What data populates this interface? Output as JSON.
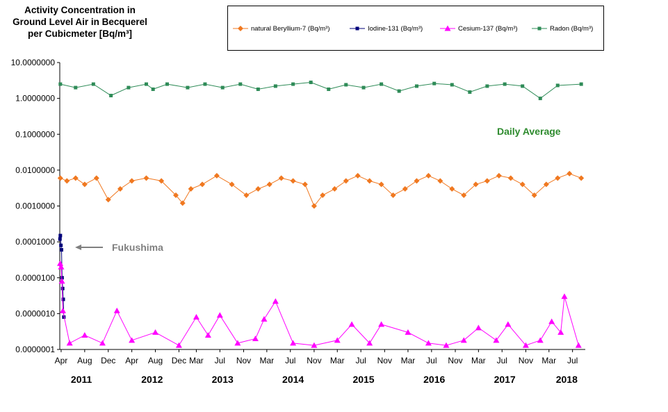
{
  "title_lines": [
    "Activity  Concentration in",
    "Ground Level Air in Becquerel",
    "per Cubicmeter  [Bq/m³]"
  ],
  "chart_data": {
    "type": "line",
    "y_scale": "log",
    "ylim": [
      1e-07,
      10
    ],
    "xlim": [
      "2011-03-25",
      "2018-09-05"
    ],
    "y_ticks": [
      "10.0000000",
      "1.0000000",
      "0.1000000",
      "0.0100000",
      "0.0010000",
      "0.0001000",
      "0.0000100",
      "0.0000010",
      "0.0000001"
    ],
    "x_ticks": [
      {
        "date": "2011-04-01",
        "label": "Apr"
      },
      {
        "date": "2011-08-01",
        "label": "Aug"
      },
      {
        "date": "2011-12-01",
        "label": "Dec"
      },
      {
        "date": "2012-04-01",
        "label": "Apr"
      },
      {
        "date": "2012-08-01",
        "label": "Aug"
      },
      {
        "date": "2012-12-01",
        "label": "Dec"
      },
      {
        "date": "2013-03-01",
        "label": "Mar"
      },
      {
        "date": "2013-07-01",
        "label": "Jul"
      },
      {
        "date": "2013-11-01",
        "label": "Nov"
      },
      {
        "date": "2014-03-01",
        "label": "Mar"
      },
      {
        "date": "2014-07-01",
        "label": "Jul"
      },
      {
        "date": "2014-11-01",
        "label": "Nov"
      },
      {
        "date": "2015-03-01",
        "label": "Mar"
      },
      {
        "date": "2015-07-01",
        "label": "Jul"
      },
      {
        "date": "2015-11-01",
        "label": "Nov"
      },
      {
        "date": "2016-03-01",
        "label": "Mar"
      },
      {
        "date": "2016-07-01",
        "label": "Jul"
      },
      {
        "date": "2016-11-01",
        "label": "Nov"
      },
      {
        "date": "2017-03-01",
        "label": "Mar"
      },
      {
        "date": "2017-07-01",
        "label": "Jul"
      },
      {
        "date": "2017-11-01",
        "label": "Nov"
      },
      {
        "date": "2018-03-01",
        "label": "Mar"
      },
      {
        "date": "2018-07-01",
        "label": "Jul"
      }
    ],
    "year_labels": [
      {
        "date": "2011-07-15",
        "label": "2011"
      },
      {
        "date": "2012-07-15",
        "label": "2012"
      },
      {
        "date": "2013-07-15",
        "label": "2013"
      },
      {
        "date": "2014-07-15",
        "label": "2014"
      },
      {
        "date": "2015-07-15",
        "label": "2015"
      },
      {
        "date": "2016-07-15",
        "label": "2016"
      },
      {
        "date": "2017-07-15",
        "label": "2017"
      },
      {
        "date": "2018-06-01",
        "label": "2018"
      }
    ],
    "legend_position": "top-right",
    "series": [
      {
        "name": "natural Beryllium-7 (Bq/m³)",
        "color": "#f07820",
        "marker": "diamond",
        "points": [
          [
            "2011-03-28",
            0.006
          ],
          [
            "2011-05-01",
            0.005
          ],
          [
            "2011-06-15",
            0.006
          ],
          [
            "2011-08-01",
            0.004
          ],
          [
            "2011-10-01",
            0.006
          ],
          [
            "2011-12-01",
            0.0015
          ],
          [
            "2012-02-01",
            0.003
          ],
          [
            "2012-04-01",
            0.005
          ],
          [
            "2012-06-15",
            0.006
          ],
          [
            "2012-09-01",
            0.005
          ],
          [
            "2012-11-15",
            0.002
          ],
          [
            "2012-12-20",
            0.0012
          ],
          [
            "2013-02-01",
            0.003
          ],
          [
            "2013-04-01",
            0.004
          ],
          [
            "2013-06-15",
            0.007
          ],
          [
            "2013-09-01",
            0.004
          ],
          [
            "2013-11-15",
            0.002
          ],
          [
            "2014-01-15",
            0.003
          ],
          [
            "2014-03-15",
            0.004
          ],
          [
            "2014-05-15",
            0.006
          ],
          [
            "2014-07-15",
            0.005
          ],
          [
            "2014-09-15",
            0.004
          ],
          [
            "2014-11-01",
            0.001
          ],
          [
            "2014-12-15",
            0.002
          ],
          [
            "2015-02-15",
            0.003
          ],
          [
            "2015-04-15",
            0.005
          ],
          [
            "2015-06-15",
            0.007
          ],
          [
            "2015-08-15",
            0.005
          ],
          [
            "2015-10-15",
            0.004
          ],
          [
            "2015-12-15",
            0.002
          ],
          [
            "2016-02-15",
            0.003
          ],
          [
            "2016-04-15",
            0.005
          ],
          [
            "2016-06-15",
            0.007
          ],
          [
            "2016-08-15",
            0.005
          ],
          [
            "2016-10-15",
            0.003
          ],
          [
            "2016-12-15",
            0.002
          ],
          [
            "2017-02-15",
            0.004
          ],
          [
            "2017-04-15",
            0.005
          ],
          [
            "2017-06-15",
            0.007
          ],
          [
            "2017-08-15",
            0.006
          ],
          [
            "2017-10-15",
            0.004
          ],
          [
            "2017-12-15",
            0.002
          ],
          [
            "2018-02-15",
            0.004
          ],
          [
            "2018-04-15",
            0.006
          ],
          [
            "2018-06-15",
            0.008
          ],
          [
            "2018-08-15",
            0.006
          ]
        ]
      },
      {
        "name": "Iodine-131 (Bq/m³)",
        "color": "#00007a",
        "marker": "square",
        "points": [
          [
            "2011-03-26",
            0.00012
          ],
          [
            "2011-03-28",
            0.00015
          ],
          [
            "2011-03-31",
            8e-05
          ],
          [
            "2011-04-03",
            6e-05
          ],
          [
            "2011-04-06",
            1e-05
          ],
          [
            "2011-04-09",
            5e-06
          ],
          [
            "2011-04-12",
            2.5e-06
          ],
          [
            "2011-04-15",
            8e-07
          ]
        ]
      },
      {
        "name": "Cesium-137 (Bq/m³)",
        "color": "#ff00ff",
        "marker": "triangle",
        "points": [
          [
            "2011-03-27",
            2.5e-05
          ],
          [
            "2011-04-01",
            2e-05
          ],
          [
            "2011-04-05",
            8e-06
          ],
          [
            "2011-04-10",
            1.2e-06
          ],
          [
            "2011-05-15",
            1.5e-07
          ],
          [
            "2011-08-01",
            2.5e-07
          ],
          [
            "2011-11-01",
            1.5e-07
          ],
          [
            "2012-01-15",
            1.2e-06
          ],
          [
            "2012-04-01",
            1.8e-07
          ],
          [
            "2012-08-01",
            3e-07
          ],
          [
            "2012-12-01",
            1.3e-07
          ],
          [
            "2013-03-01",
            8e-07
          ],
          [
            "2013-05-01",
            2.5e-07
          ],
          [
            "2013-07-01",
            9e-07
          ],
          [
            "2013-10-01",
            1.5e-07
          ],
          [
            "2014-01-01",
            2e-07
          ],
          [
            "2014-02-15",
            7e-07
          ],
          [
            "2014-04-15",
            2.2e-06
          ],
          [
            "2014-07-15",
            1.5e-07
          ],
          [
            "2014-11-01",
            1.3e-07
          ],
          [
            "2015-03-01",
            1.8e-07
          ],
          [
            "2015-05-15",
            5e-07
          ],
          [
            "2015-08-15",
            1.5e-07
          ],
          [
            "2015-10-15",
            5e-07
          ],
          [
            "2016-03-01",
            3e-07
          ],
          [
            "2016-06-15",
            1.5e-07
          ],
          [
            "2016-09-15",
            1.3e-07
          ],
          [
            "2016-12-15",
            1.8e-07
          ],
          [
            "2017-03-01",
            4e-07
          ],
          [
            "2017-06-01",
            1.8e-07
          ],
          [
            "2017-08-01",
            5e-07
          ],
          [
            "2017-11-01",
            1.3e-07
          ],
          [
            "2018-01-15",
            1.8e-07
          ],
          [
            "2018-03-15",
            6e-07
          ],
          [
            "2018-05-01",
            3e-07
          ],
          [
            "2018-05-20",
            3e-06
          ],
          [
            "2018-08-01",
            1.3e-07
          ]
        ]
      },
      {
        "name": "Radon (Bq/m³)",
        "color": "#2e8b57",
        "marker": "square",
        "points": [
          [
            "2011-03-28",
            2.5
          ],
          [
            "2011-06-15",
            2.0
          ],
          [
            "2011-09-15",
            2.5
          ],
          [
            "2011-12-15",
            1.2
          ],
          [
            "2012-03-15",
            2.0
          ],
          [
            "2012-06-15",
            2.5
          ],
          [
            "2012-07-20",
            1.8
          ],
          [
            "2012-10-01",
            2.5
          ],
          [
            "2013-01-15",
            2.0
          ],
          [
            "2013-04-15",
            2.5
          ],
          [
            "2013-07-15",
            2.0
          ],
          [
            "2013-10-15",
            2.5
          ],
          [
            "2014-01-15",
            1.8
          ],
          [
            "2014-04-15",
            2.2
          ],
          [
            "2014-07-15",
            2.5
          ],
          [
            "2014-10-15",
            2.8
          ],
          [
            "2015-01-15",
            1.8
          ],
          [
            "2015-04-15",
            2.4
          ],
          [
            "2015-07-15",
            2.0
          ],
          [
            "2015-10-15",
            2.5
          ],
          [
            "2016-01-15",
            1.6
          ],
          [
            "2016-04-15",
            2.2
          ],
          [
            "2016-07-15",
            2.6
          ],
          [
            "2016-10-15",
            2.4
          ],
          [
            "2017-01-15",
            1.5
          ],
          [
            "2017-04-15",
            2.2
          ],
          [
            "2017-07-15",
            2.5
          ],
          [
            "2017-10-15",
            2.2
          ],
          [
            "2018-01-15",
            1.0
          ],
          [
            "2018-04-15",
            2.3
          ],
          [
            "2018-08-15",
            2.5
          ]
        ]
      }
    ],
    "annotations": [
      "Fukushima",
      "Daily Average"
    ]
  }
}
